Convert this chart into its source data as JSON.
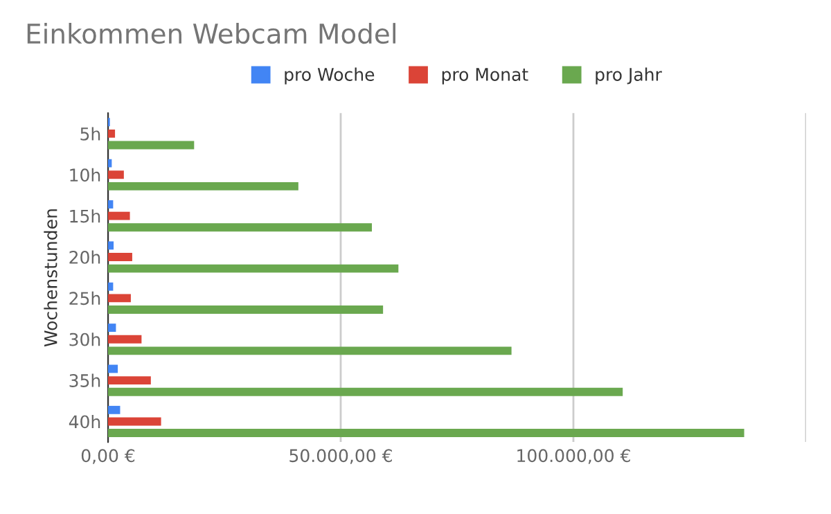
{
  "chart_data": {
    "type": "bar",
    "orientation": "horizontal",
    "title": "Einkommen Webcam Model",
    "ylabel": "Wochenstunden",
    "categories": [
      "5h",
      "10h",
      "15h",
      "20h",
      "25h",
      "30h",
      "35h",
      "40h"
    ],
    "series": [
      {
        "name": "pro Woche",
        "color": "#4285f4",
        "values": [
          400,
          800,
          1100,
          1200,
          1100,
          1700,
          2100,
          2600
        ]
      },
      {
        "name": "pro Monat",
        "color": "#db4437",
        "values": [
          1500,
          3400,
          4700,
          5200,
          4900,
          7200,
          9200,
          11400
        ]
      },
      {
        "name": "pro Jahr",
        "color": "#6aa84f",
        "values": [
          18500,
          40900,
          56700,
          62400,
          59100,
          86700,
          110600,
          136700
        ]
      }
    ],
    "xlim": [
      0,
      150000
    ],
    "xticks": [
      {
        "value": 0,
        "label": "0,00 €"
      },
      {
        "value": 50000,
        "label": "50.000,00 €"
      },
      {
        "value": 100000,
        "label": "100.000,00 €"
      },
      {
        "value": 150000,
        "label": null
      }
    ],
    "grid": "x",
    "legend": "top"
  }
}
